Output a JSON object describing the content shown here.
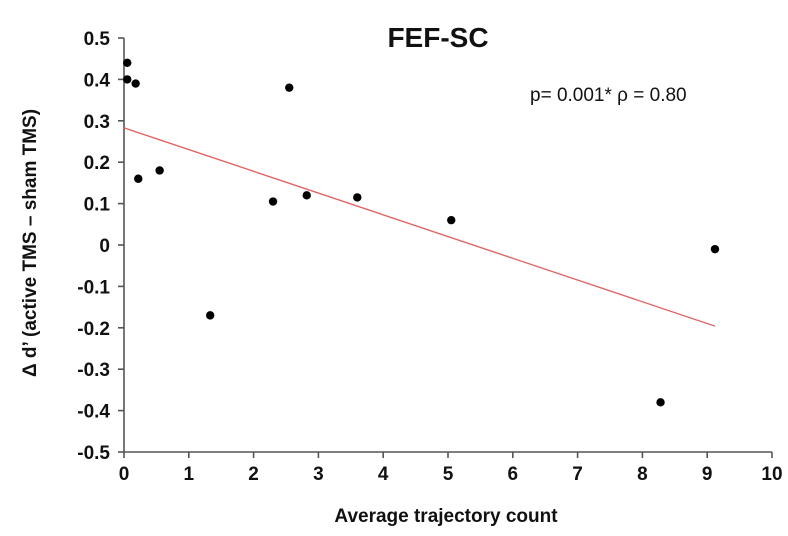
{
  "chart_data": {
    "type": "scatter",
    "title": "FEF-SC",
    "xlabel": "Average trajectory count",
    "ylabel": "Δ d’ (active TMS – sham TMS)",
    "annotation": "p= 0.001* ρ = 0.80",
    "xlim": [
      0,
      10
    ],
    "ylim": [
      -0.5,
      0.5
    ],
    "x_ticks": [
      "0",
      "1",
      "2",
      "3",
      "4",
      "5",
      "6",
      "7",
      "8",
      "9",
      "10"
    ],
    "y_ticks": [
      "0.5",
      "0.4",
      "0.3",
      "0.2",
      "0.1",
      "0",
      "-0.1",
      "-0.2",
      "-0.3",
      "-0.4",
      "-0.5"
    ],
    "grid": false,
    "points": [
      {
        "x": 0.05,
        "y": 0.44
      },
      {
        "x": 0.05,
        "y": 0.4
      },
      {
        "x": 0.18,
        "y": 0.39
      },
      {
        "x": 0.22,
        "y": 0.16
      },
      {
        "x": 0.55,
        "y": 0.18
      },
      {
        "x": 1.33,
        "y": -0.17
      },
      {
        "x": 2.3,
        "y": 0.105
      },
      {
        "x": 2.55,
        "y": 0.38
      },
      {
        "x": 2.82,
        "y": 0.12
      },
      {
        "x": 3.6,
        "y": 0.115
      },
      {
        "x": 5.05,
        "y": 0.06
      },
      {
        "x": 8.28,
        "y": -0.38
      },
      {
        "x": 9.12,
        "y": -0.01
      }
    ],
    "trendline": {
      "x": [
        0,
        9.12
      ],
      "y": [
        0.283,
        -0.196
      ],
      "color": "#e06666"
    },
    "point_color": "#000000"
  }
}
